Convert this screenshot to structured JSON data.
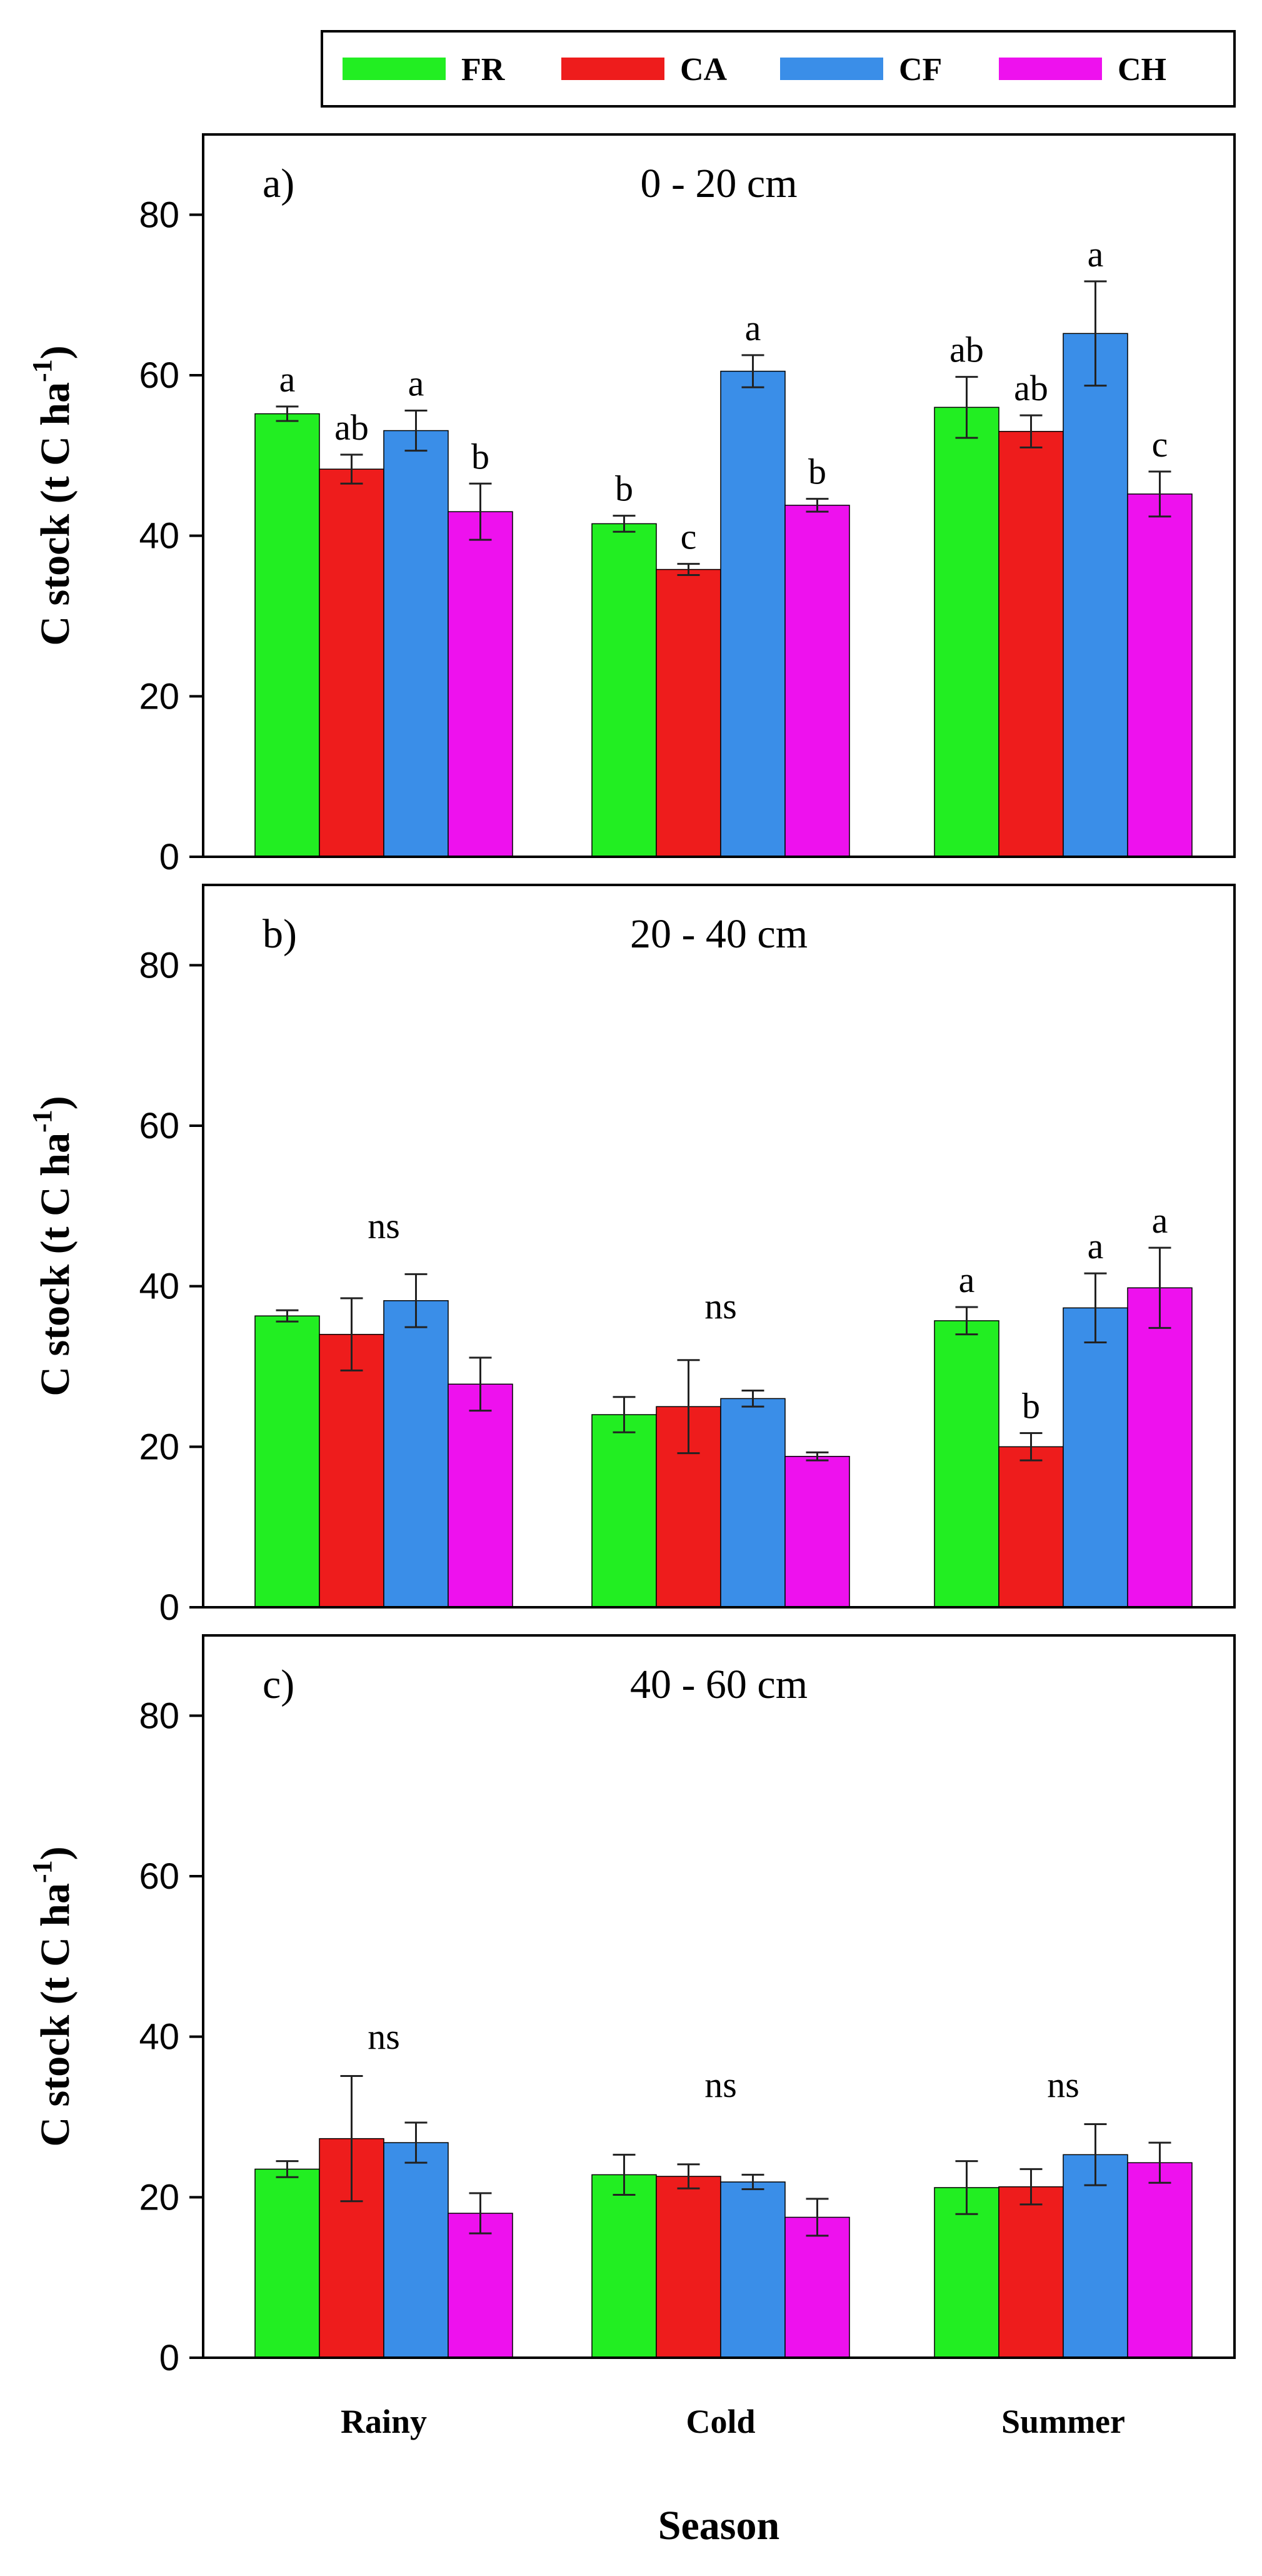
{
  "legend": [
    {
      "label": "FR",
      "color": "#22ee22"
    },
    {
      "label": "CA",
      "color": "#ee1c1c"
    },
    {
      "label": "CF",
      "color": "#3a8ee8"
    },
    {
      "label": "CH",
      "color": "#ee11ee"
    }
  ],
  "chart_data": [
    {
      "type": "bar",
      "panel_label": "a)",
      "title": "0 - 20 cm",
      "categories": [
        "Rainy",
        "Cold",
        "Summer"
      ],
      "ylabel": "C stock (t C ha",
      "ylabel_sup": "-1",
      "ylabel_close": ")",
      "ylim": [
        0,
        90
      ],
      "yticks": [
        0,
        20,
        40,
        60,
        80
      ],
      "series": [
        {
          "name": "FR",
          "values": [
            55.2,
            41.5,
            56.0
          ],
          "errors": [
            0.9,
            1.0,
            3.8
          ]
        },
        {
          "name": "CA",
          "values": [
            48.3,
            35.8,
            53.0
          ],
          "errors": [
            1.8,
            0.7,
            2.0
          ]
        },
        {
          "name": "CF",
          "values": [
            53.1,
            60.5,
            65.2
          ],
          "errors": [
            2.5,
            2.0,
            6.5
          ]
        },
        {
          "name": "CH",
          "values": [
            43.0,
            43.8,
            45.2
          ],
          "errors": [
            3.5,
            0.8,
            2.8
          ]
        }
      ],
      "letters": [
        {
          "category": 0,
          "series": 0,
          "text": "a"
        },
        {
          "category": 0,
          "series": 1,
          "text": "ab"
        },
        {
          "category": 0,
          "series": 2,
          "text": "a"
        },
        {
          "category": 0,
          "series": 3,
          "text": "b"
        },
        {
          "category": 1,
          "series": 0,
          "text": "b"
        },
        {
          "category": 1,
          "series": 1,
          "text": "c"
        },
        {
          "category": 1,
          "series": 2,
          "text": "a"
        },
        {
          "category": 1,
          "series": 3,
          "text": "b"
        },
        {
          "category": 2,
          "series": 0,
          "text": "ab"
        },
        {
          "category": 2,
          "series": 1,
          "text": "ab"
        },
        {
          "category": 2,
          "series": 2,
          "text": "a"
        },
        {
          "category": 2,
          "series": 3,
          "text": "c"
        }
      ],
      "group_labels": []
    },
    {
      "type": "bar",
      "panel_label": "b)",
      "title": "20 - 40 cm",
      "categories": [
        "Rainy",
        "Cold",
        "Summer"
      ],
      "ylabel": "C stock (t C ha",
      "ylabel_sup": "-1",
      "ylabel_close": ")",
      "ylim": [
        0,
        90
      ],
      "yticks": [
        0,
        20,
        40,
        60,
        80
      ],
      "series": [
        {
          "name": "FR",
          "values": [
            36.3,
            24.0,
            35.7
          ],
          "errors": [
            0.7,
            2.2,
            1.7
          ]
        },
        {
          "name": "CA",
          "values": [
            34.0,
            25.0,
            20.0
          ],
          "errors": [
            4.5,
            5.8,
            1.7
          ]
        },
        {
          "name": "CF",
          "values": [
            38.2,
            26.0,
            37.3
          ],
          "errors": [
            3.3,
            1.0,
            4.3
          ]
        },
        {
          "name": "CH",
          "values": [
            27.8,
            18.8,
            39.8
          ],
          "errors": [
            3.3,
            0.5,
            5.0
          ]
        }
      ],
      "letters": [
        {
          "category": 2,
          "series": 0,
          "text": "a"
        },
        {
          "category": 2,
          "series": 1,
          "text": "b"
        },
        {
          "category": 2,
          "series": 2,
          "text": "a"
        },
        {
          "category": 2,
          "series": 3,
          "text": "a"
        }
      ],
      "group_labels": [
        {
          "category": 0,
          "text": "ns",
          "y": 46
        },
        {
          "category": 1,
          "text": "ns",
          "y": 36
        }
      ]
    },
    {
      "type": "bar",
      "panel_label": "c)",
      "title": "40 - 60 cm",
      "categories": [
        "Rainy",
        "Cold",
        "Summer"
      ],
      "ylabel": "C stock (t C ha",
      "ylabel_sup": "-1",
      "ylabel_close": ")",
      "ylim": [
        0,
        90
      ],
      "yticks": [
        0,
        20,
        40,
        60,
        80
      ],
      "xlabel": "Season",
      "series": [
        {
          "name": "FR",
          "values": [
            23.5,
            22.8,
            21.2
          ],
          "errors": [
            1.0,
            2.5,
            3.3
          ]
        },
        {
          "name": "CA",
          "values": [
            27.3,
            22.6,
            21.3
          ],
          "errors": [
            7.8,
            1.5,
            2.2
          ]
        },
        {
          "name": "CF",
          "values": [
            26.8,
            21.9,
            25.3
          ],
          "errors": [
            2.5,
            0.9,
            3.8
          ]
        },
        {
          "name": "CH",
          "values": [
            18.0,
            17.5,
            24.3
          ],
          "errors": [
            2.5,
            2.3,
            2.5
          ]
        }
      ],
      "letters": [],
      "group_labels": [
        {
          "category": 0,
          "text": "ns",
          "y": 38.5
        },
        {
          "category": 1,
          "text": "ns",
          "y": 32.5
        },
        {
          "category": 2,
          "text": "ns",
          "y": 32.5
        }
      ]
    }
  ]
}
